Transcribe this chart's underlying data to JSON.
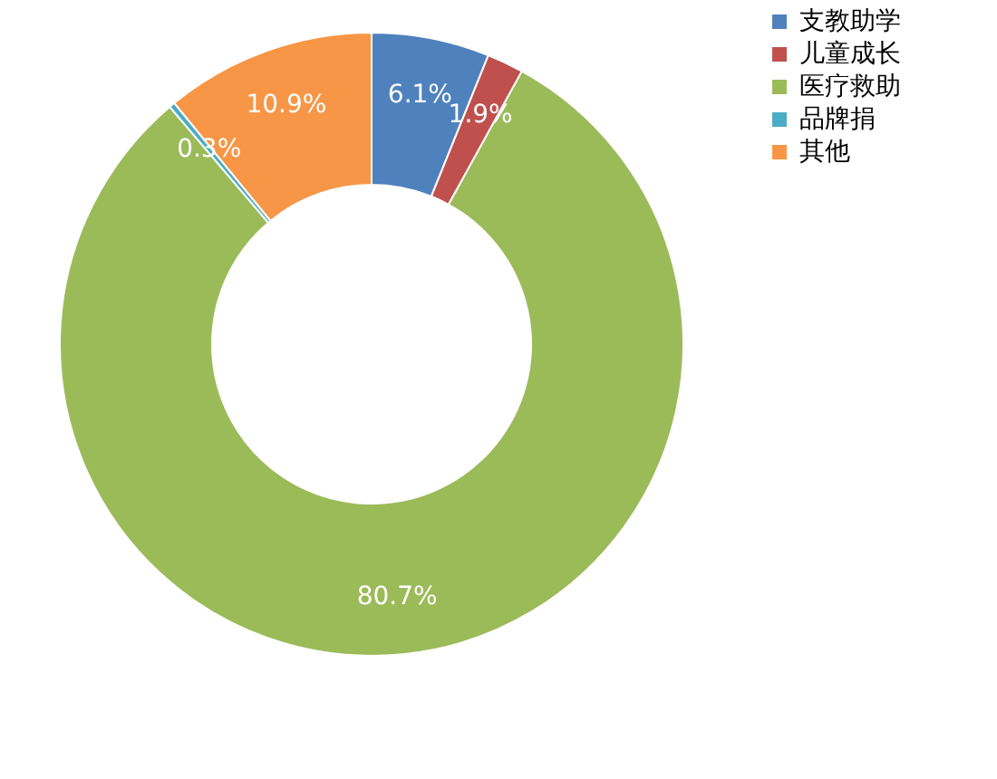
{
  "chart_data": {
    "type": "donut",
    "categories": [
      "支教助学",
      "儿童成长",
      "医疗救助",
      "品牌捐",
      "其他"
    ],
    "values": [
      6.1,
      1.9,
      80.7,
      0.3,
      10.9
    ],
    "value_labels": [
      "6.1%",
      "1.9%",
      "80.7%",
      "0.3%",
      "10.9%"
    ],
    "colors": [
      "#4f81bd",
      "#c0504d",
      "#9bbb59",
      "#4bacc6",
      "#f79646"
    ],
    "legend": "right"
  }
}
